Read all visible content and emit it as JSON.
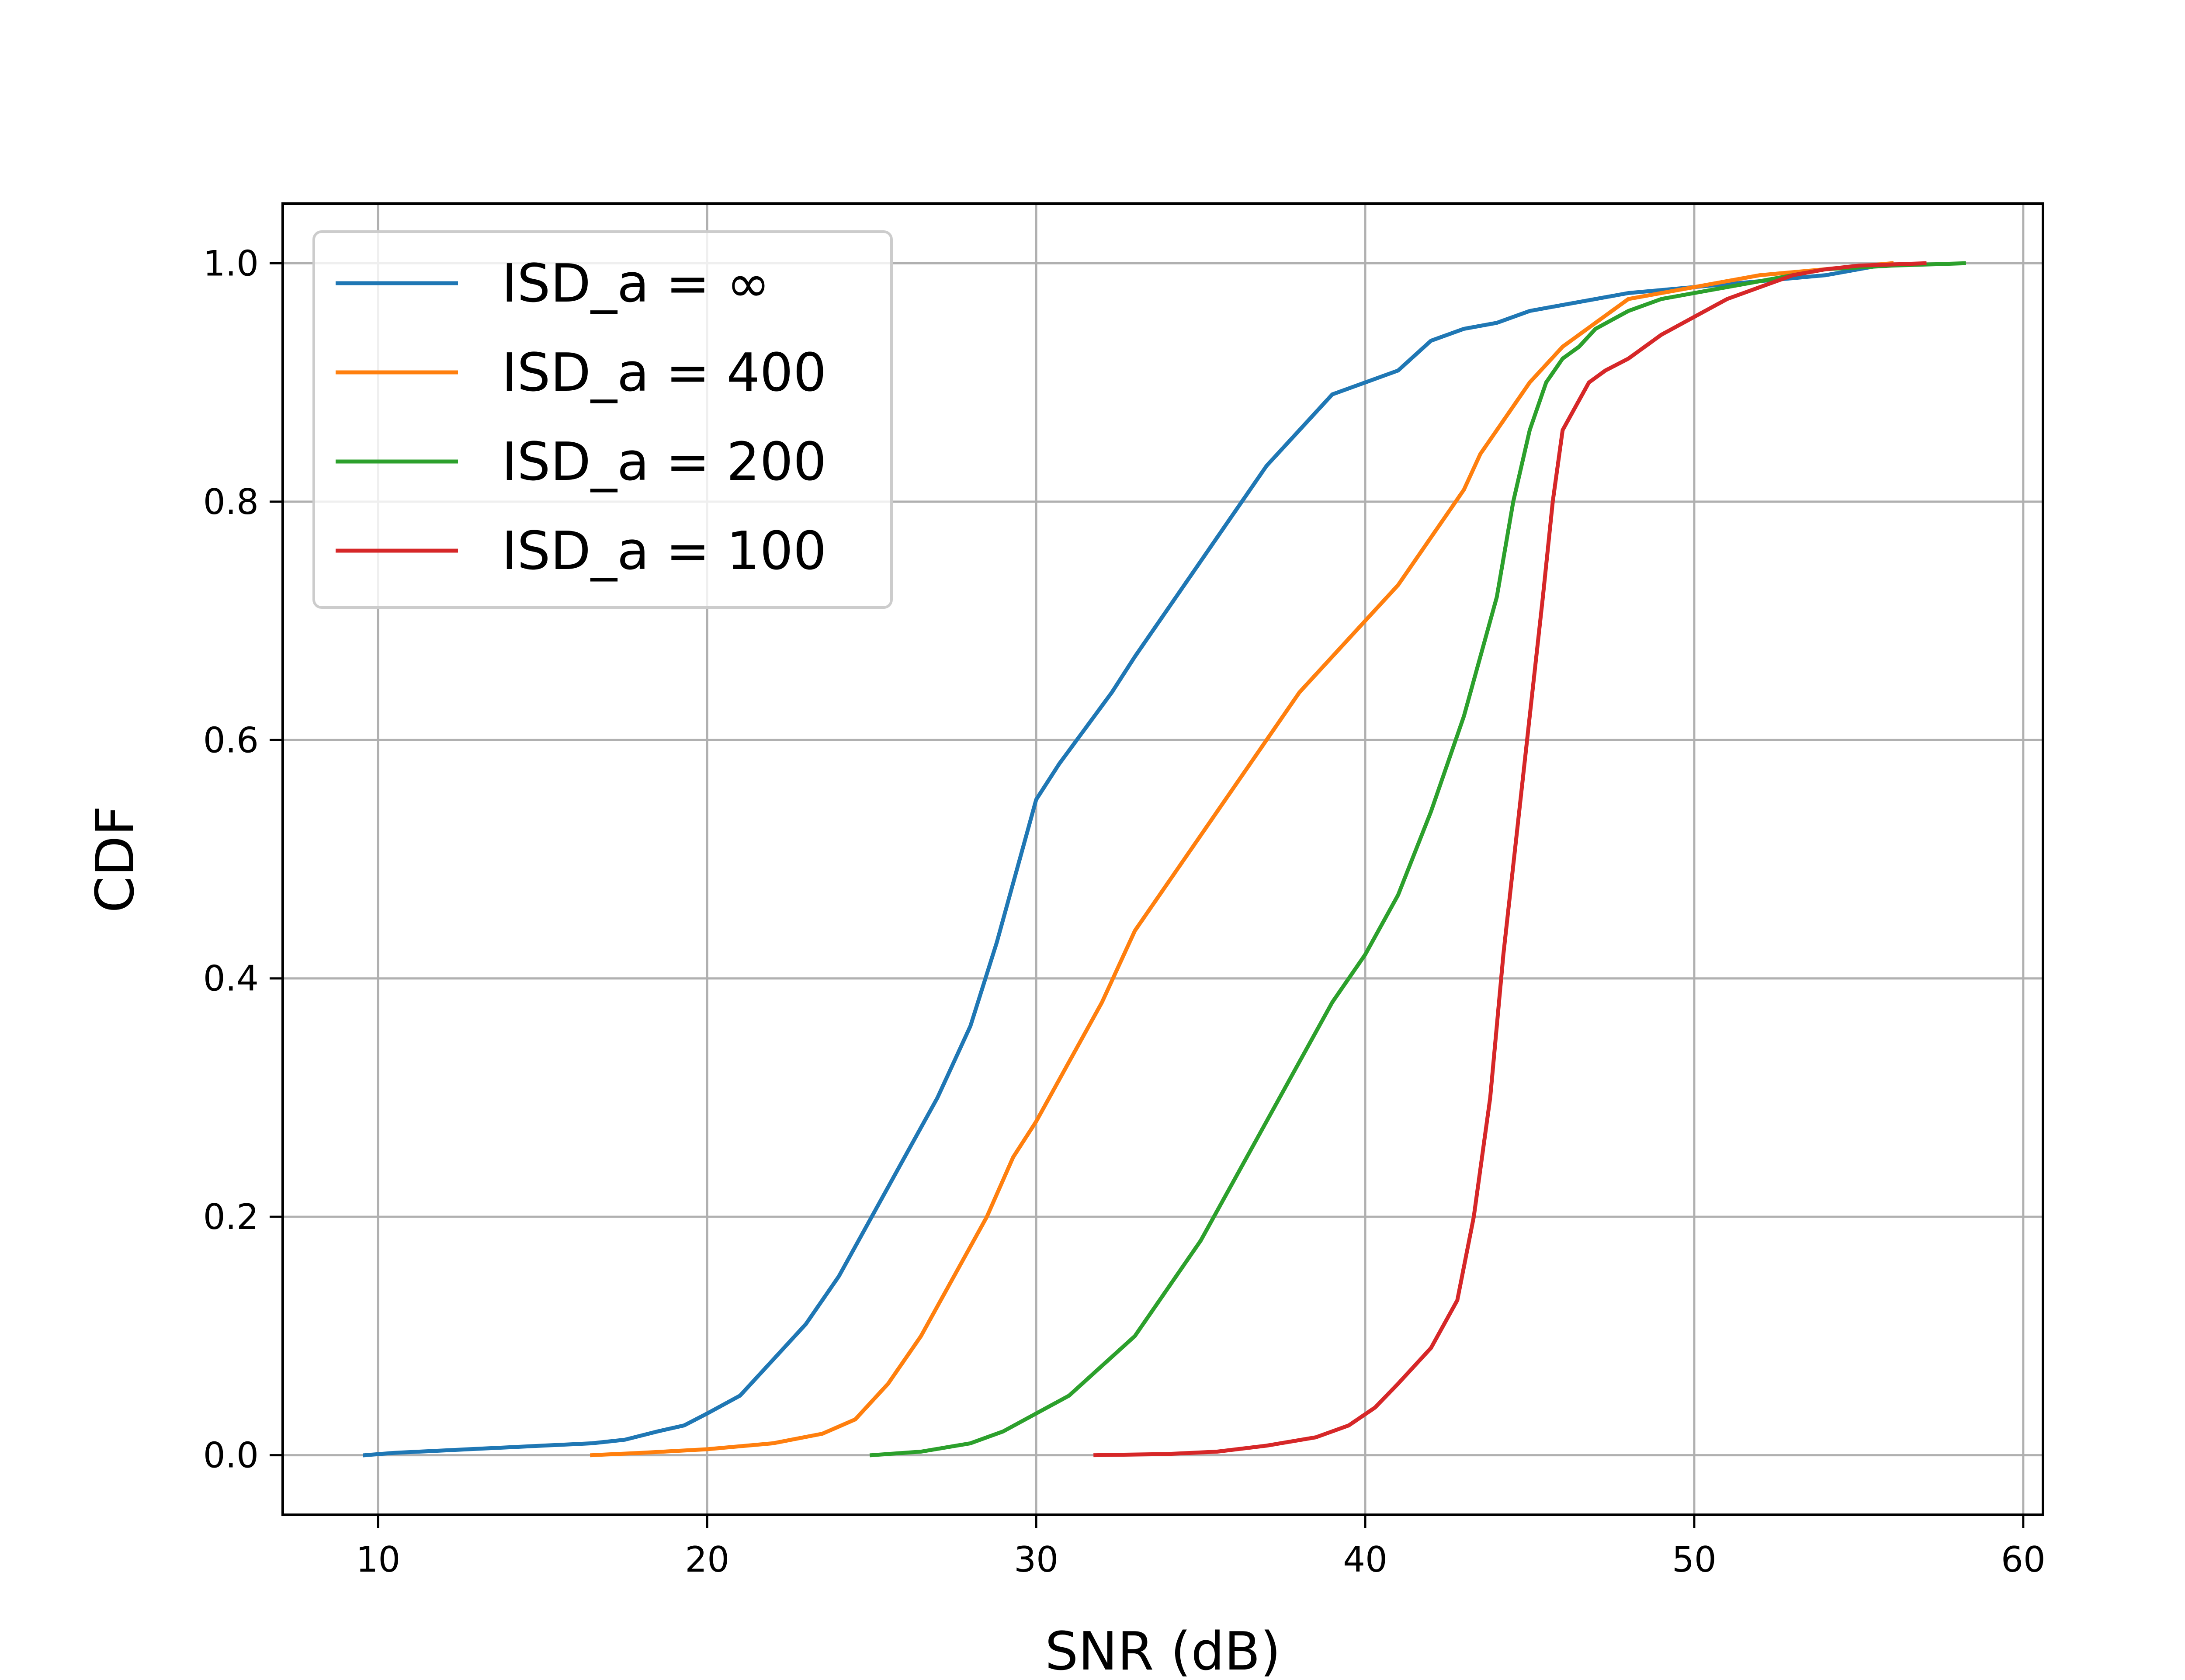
{
  "chart_data": {
    "type": "line",
    "title": "",
    "xlabel": "SNR (dB)",
    "ylabel": "CDF",
    "xlim": [
      7.1,
      60.6
    ],
    "ylim": [
      -0.05,
      1.05
    ],
    "xticks": [
      10,
      20,
      30,
      40,
      50,
      60
    ],
    "yticks": [
      0.0,
      0.2,
      0.4,
      0.6,
      0.8,
      1.0
    ],
    "xtick_labels": [
      "10",
      "20",
      "30",
      "40",
      "50",
      "60"
    ],
    "ytick_labels": [
      "0.0",
      "0.2",
      "0.4",
      "0.6",
      "0.8",
      "1.0"
    ],
    "grid": true,
    "legend_position": "top-left",
    "series": [
      {
        "name": "ISD_a = ∞",
        "color": "#1f77b4",
        "x": [
          9.6,
          10.5,
          12.0,
          13.5,
          15.0,
          16.5,
          17.5,
          18.5,
          19.3,
          20.0,
          21.0,
          22.0,
          23.0,
          24.0,
          25.0,
          26.0,
          27.0,
          28.0,
          28.8,
          29.5,
          30.0,
          30.7,
          31.5,
          32.3,
          33.0,
          34.0,
          35.0,
          36.0,
          37.0,
          38.0,
          39.0,
          40.0,
          41.0,
          42.0,
          43.0,
          44.0,
          45.0,
          46.0,
          47.0,
          48.0,
          50.0,
          52.0,
          54.0,
          56.0
        ],
        "y": [
          0.0,
          0.002,
          0.004,
          0.006,
          0.008,
          0.01,
          0.013,
          0.02,
          0.025,
          0.035,
          0.05,
          0.08,
          0.11,
          0.15,
          0.2,
          0.25,
          0.3,
          0.36,
          0.43,
          0.5,
          0.55,
          0.58,
          0.61,
          0.64,
          0.67,
          0.71,
          0.75,
          0.79,
          0.83,
          0.86,
          0.89,
          0.9,
          0.91,
          0.935,
          0.945,
          0.95,
          0.96,
          0.965,
          0.97,
          0.975,
          0.98,
          0.985,
          0.99,
          1.0
        ]
      },
      {
        "name": "ISD_a = 400",
        "color": "#ff7f0e",
        "x": [
          16.5,
          18.0,
          20.0,
          22.0,
          23.5,
          24.5,
          25.5,
          26.5,
          27.5,
          28.5,
          29.3,
          30.0,
          31.0,
          32.0,
          33.0,
          34.0,
          35.0,
          36.0,
          37.0,
          38.0,
          39.0,
          40.0,
          41.0,
          42.0,
          43.0,
          43.5,
          44.0,
          45.0,
          46.0,
          47.0,
          48.0,
          50.0,
          52.0,
          54.0,
          56.0
        ],
        "y": [
          0.0,
          0.002,
          0.005,
          0.01,
          0.018,
          0.03,
          0.06,
          0.1,
          0.15,
          0.2,
          0.25,
          0.28,
          0.33,
          0.38,
          0.44,
          0.48,
          0.52,
          0.56,
          0.6,
          0.64,
          0.67,
          0.7,
          0.73,
          0.77,
          0.81,
          0.84,
          0.86,
          0.9,
          0.93,
          0.95,
          0.97,
          0.98,
          0.99,
          0.995,
          1.0
        ]
      },
      {
        "name": "ISD_a = 200",
        "color": "#2ca02c",
        "x": [
          25.0,
          26.5,
          28.0,
          29.0,
          30.0,
          31.0,
          32.0,
          33.0,
          34.0,
          35.0,
          36.0,
          37.0,
          38.0,
          39.0,
          40.0,
          41.0,
          42.0,
          43.0,
          44.0,
          44.5,
          45.0,
          45.5,
          46.0,
          46.5,
          47.0,
          48.0,
          49.0,
          50.0,
          52.0,
          54.0,
          56.0,
          58.2
        ],
        "y": [
          0.0,
          0.003,
          0.01,
          0.02,
          0.035,
          0.05,
          0.075,
          0.1,
          0.14,
          0.18,
          0.23,
          0.28,
          0.33,
          0.38,
          0.42,
          0.47,
          0.54,
          0.62,
          0.72,
          0.8,
          0.86,
          0.9,
          0.92,
          0.93,
          0.945,
          0.96,
          0.97,
          0.975,
          0.985,
          0.995,
          0.998,
          1.0
        ]
      },
      {
        "name": "ISD_a = 100",
        "color": "#d62728",
        "x": [
          31.8,
          34.0,
          35.5,
          37.0,
          38.5,
          39.5,
          40.3,
          41.0,
          42.0,
          42.8,
          43.3,
          43.8,
          44.2,
          44.6,
          45.0,
          45.4,
          45.7,
          46.0,
          46.4,
          46.8,
          47.3,
          48.0,
          49.0,
          50.0,
          51.0,
          52.0,
          53.0,
          54.0,
          55.0,
          56.0,
          57.0
        ],
        "y": [
          0.0,
          0.001,
          0.003,
          0.008,
          0.015,
          0.025,
          0.04,
          0.06,
          0.09,
          0.13,
          0.2,
          0.3,
          0.42,
          0.52,
          0.62,
          0.72,
          0.8,
          0.86,
          0.88,
          0.9,
          0.91,
          0.92,
          0.94,
          0.955,
          0.97,
          0.98,
          0.99,
          0.995,
          0.998,
          0.999,
          1.0
        ]
      }
    ]
  }
}
